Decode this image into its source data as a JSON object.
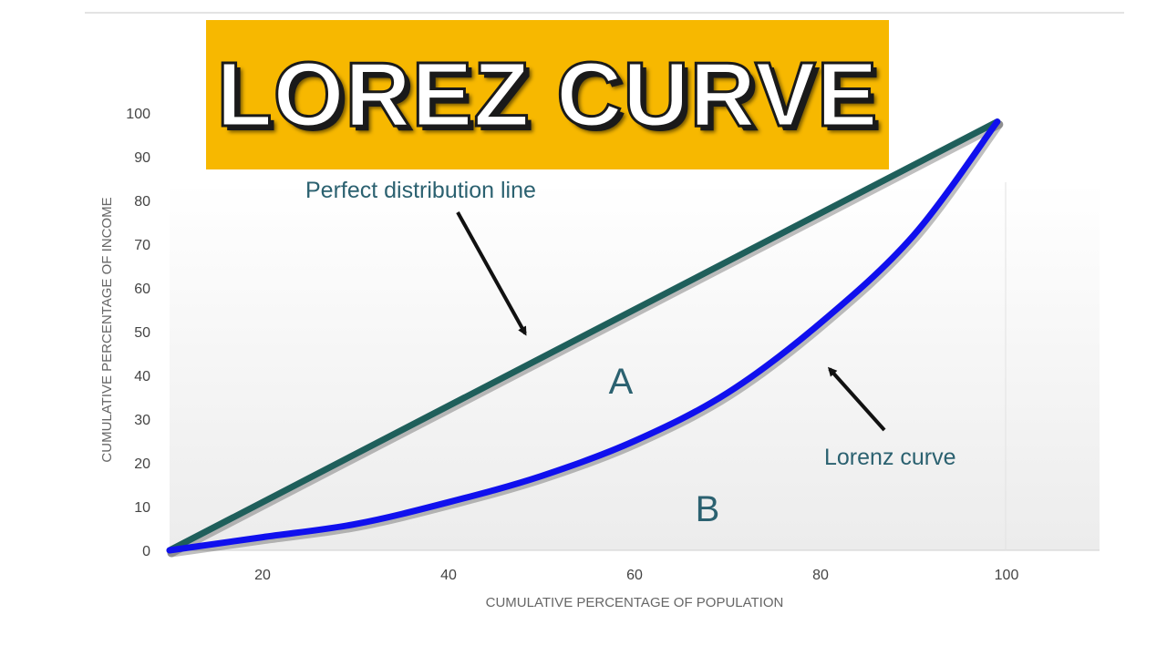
{
  "title": "LOREZ CURVE",
  "chart_data": {
    "type": "line",
    "xlabel": "CUMULATIVE PERCENTAGE OF POPULATION",
    "ylabel": "CUMULATIVE PERCENTAGE OF INCOME",
    "xlim": [
      10,
      110
    ],
    "ylim": [
      0,
      100
    ],
    "x_ticks": [
      20,
      40,
      60,
      80,
      100
    ],
    "y_ticks": [
      0,
      10,
      20,
      30,
      40,
      50,
      60,
      70,
      80,
      90,
      100
    ],
    "grid": false,
    "series": [
      {
        "color": "#1f5f5b",
        "x": [
          10,
          99
        ],
        "y": [
          0,
          98
        ]
      },
      {
        "color": "#1010ee",
        "x": [
          10,
          20,
          30,
          40,
          50,
          60,
          70,
          80,
          90,
          99
        ],
        "y": [
          0,
          3,
          6,
          11,
          17,
          25,
          36,
          52,
          72,
          98
        ]
      }
    ],
    "annotations": [
      {
        "text": "Perfect distribution line"
      },
      {
        "text": "Lorenz curve"
      },
      {
        "text": "A"
      },
      {
        "text": "B"
      }
    ]
  }
}
